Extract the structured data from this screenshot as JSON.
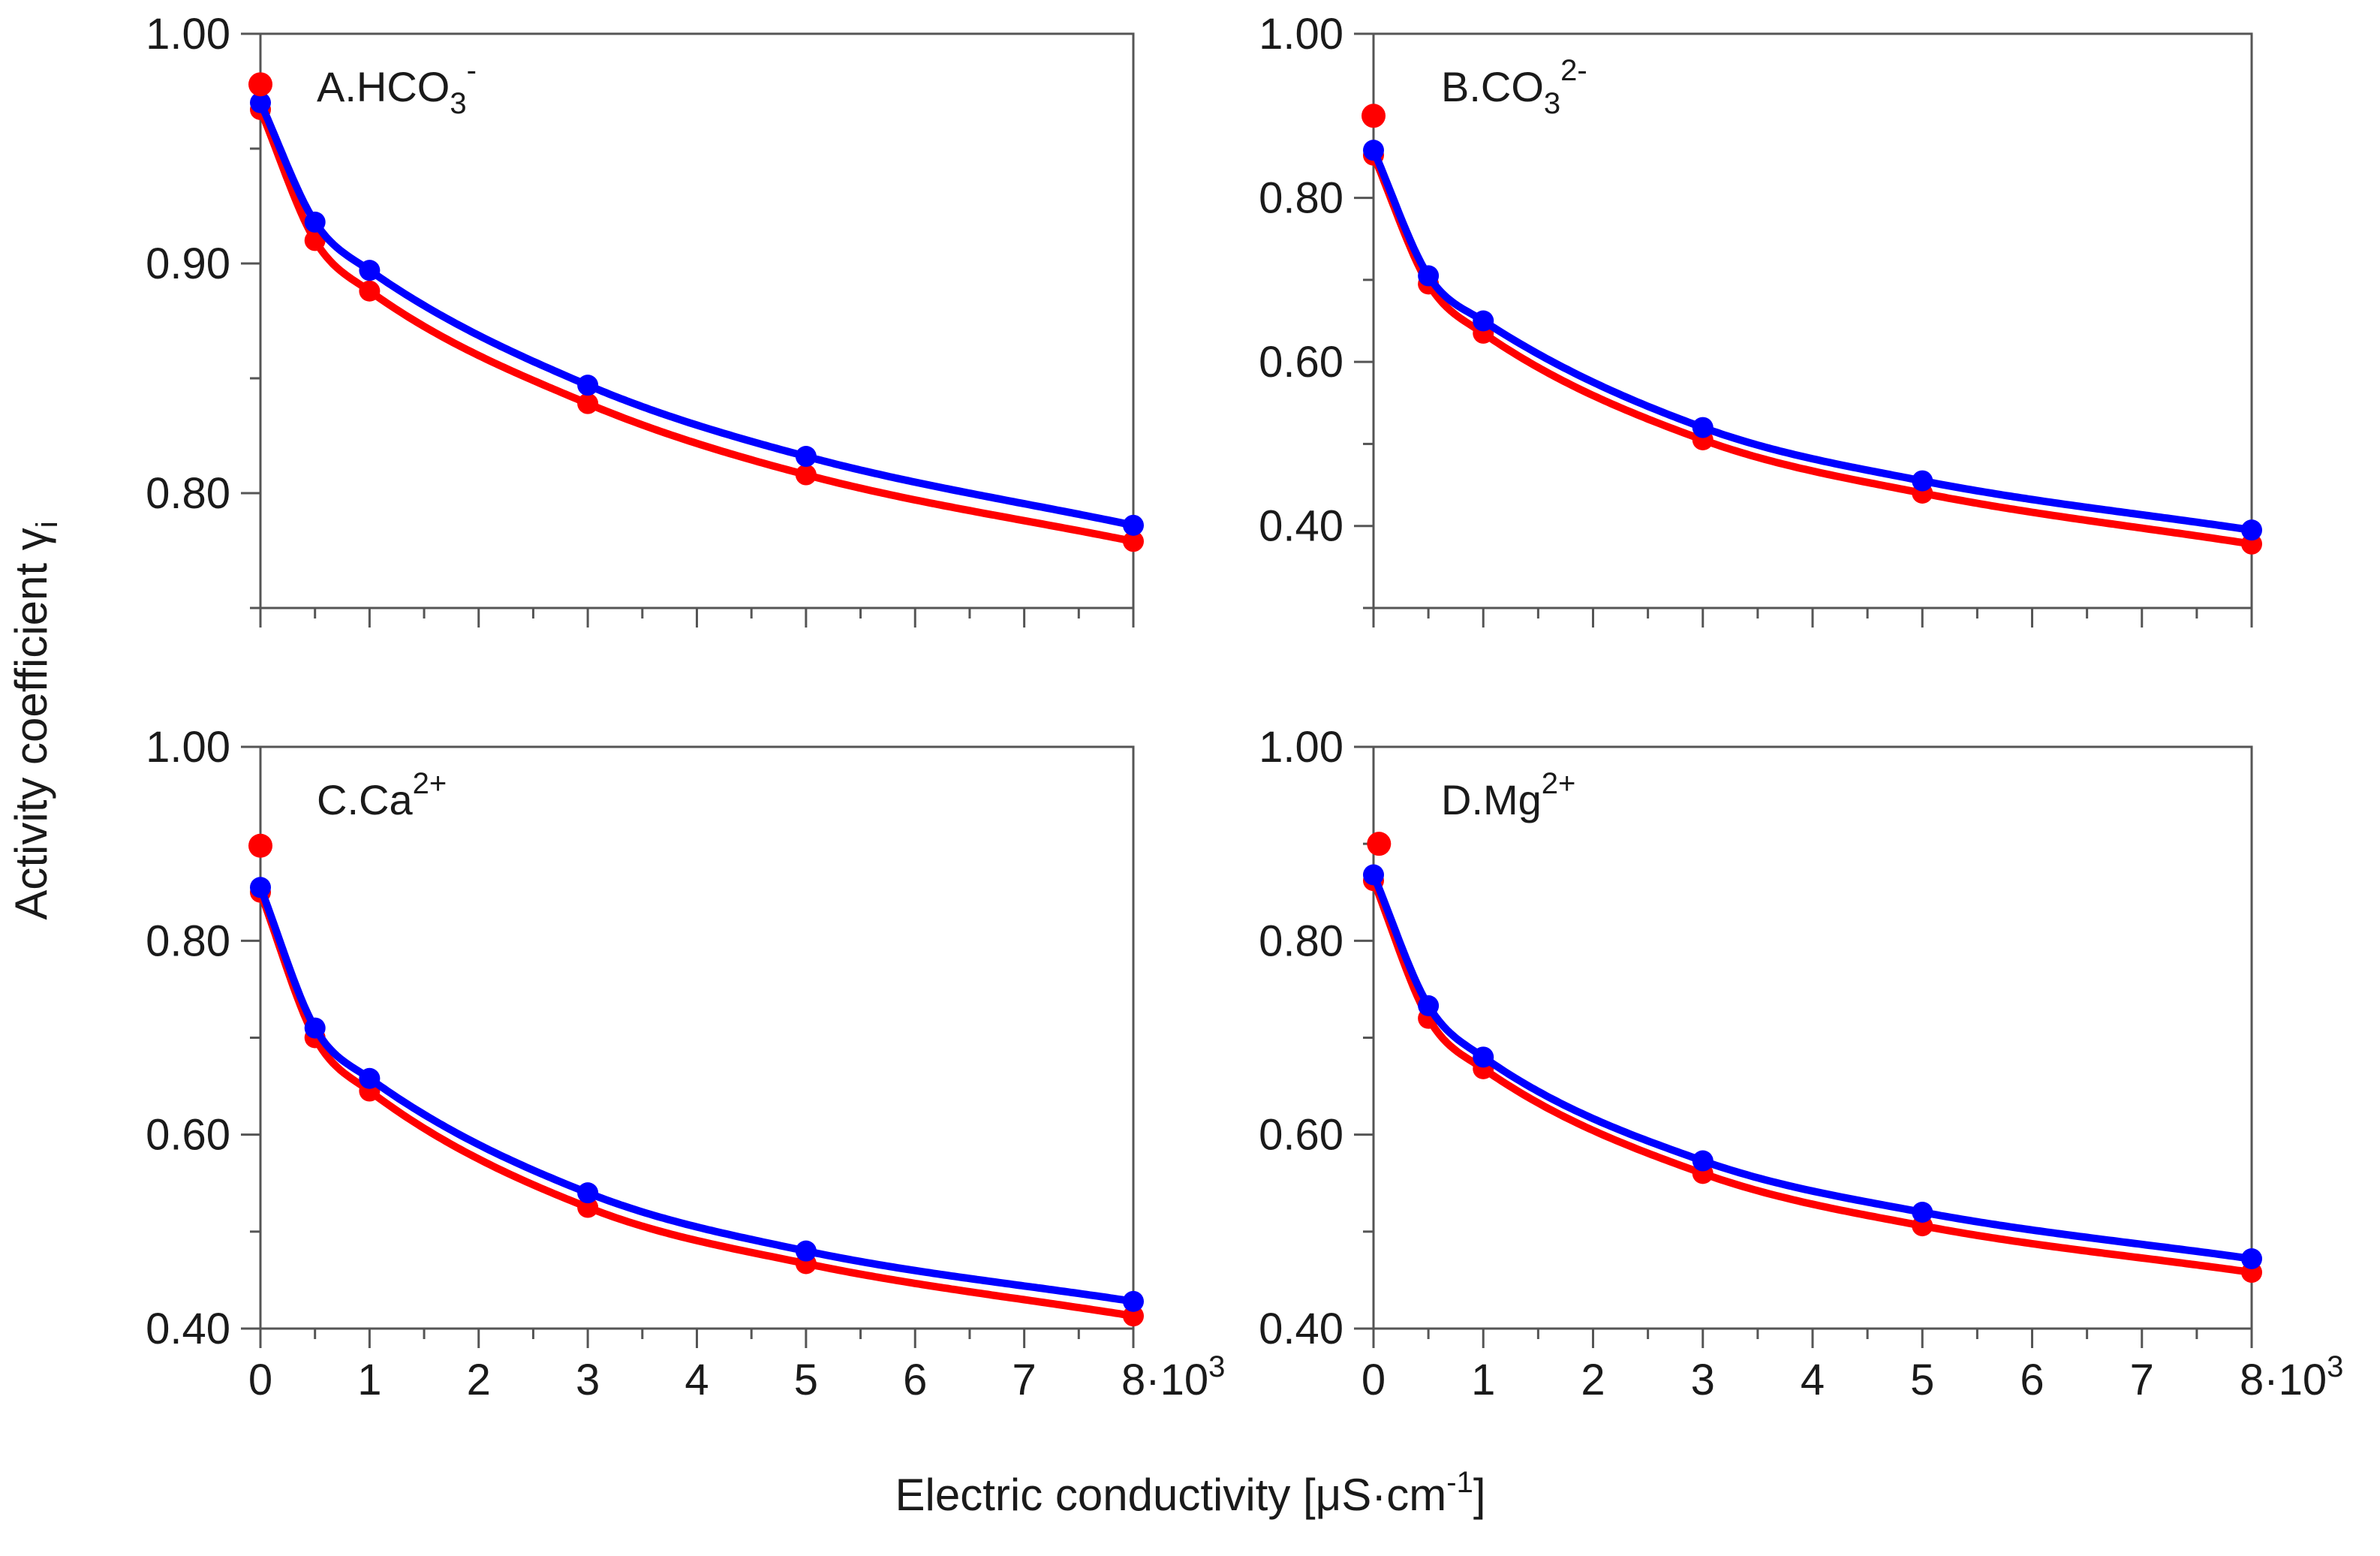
{
  "figure": {
    "ylabel_main": "Activity coefficient γ",
    "ylabel_sub": "i",
    "xlabel_main": "Electric conductivity [μS·cm",
    "xlabel_sup": "-1",
    "xlabel_end": "]",
    "x_exponent_suffix": "·10",
    "x_exponent_sup": "3",
    "series_colors": {
      "blue": "#0000ff",
      "red": "#ff0000"
    },
    "axis_color": "#555555"
  },
  "chart_data": [
    {
      "type": "line",
      "id": "A",
      "title_main": "A.HCO",
      "title_sub": "3",
      "title_sup": "-",
      "x": [
        0,
        0.5,
        1,
        3,
        5,
        8
      ],
      "xlim": [
        0,
        8
      ],
      "x_ticks": [
        "0",
        "1",
        "2",
        "3",
        "4",
        "5",
        "6",
        "7",
        "8"
      ],
      "ylim": [
        0.75,
        1.0
      ],
      "y_ticks": [
        1.0,
        0.9,
        0.8
      ],
      "y_tick_labels": [
        "1.00",
        "0.90",
        "0.80"
      ],
      "series": [
        {
          "name": "blue",
          "color": "#0000ff",
          "values": [
            0.97,
            0.918,
            0.897,
            0.847,
            0.816,
            0.786
          ]
        },
        {
          "name": "red",
          "color": "#ff0000",
          "values": [
            0.967,
            0.91,
            0.888,
            0.839,
            0.808,
            0.779
          ]
        }
      ],
      "extra_points": [
        {
          "series": "red",
          "x": 0,
          "y": 0.978
        }
      ]
    },
    {
      "type": "line",
      "id": "B",
      "title_main": "B.CO",
      "title_sub": "3",
      "title_sup": "2-",
      "x": [
        0,
        0.5,
        1,
        3,
        5,
        8
      ],
      "xlim": [
        0,
        8
      ],
      "x_ticks": [
        "0",
        "1",
        "2",
        "3",
        "4",
        "5",
        "6",
        "7",
        "8"
      ],
      "ylim": [
        0.3,
        1.0
      ],
      "y_ticks": [
        1.0,
        0.8,
        0.6,
        0.4
      ],
      "y_tick_labels": [
        "1.00",
        "0.80",
        "0.60",
        "0.40"
      ],
      "series": [
        {
          "name": "blue",
          "color": "#0000ff",
          "values": [
            0.858,
            0.705,
            0.65,
            0.52,
            0.455,
            0.395
          ]
        },
        {
          "name": "red",
          "color": "#ff0000",
          "values": [
            0.852,
            0.695,
            0.635,
            0.505,
            0.44,
            0.378
          ]
        }
      ],
      "extra_points": [
        {
          "series": "red",
          "x": 0,
          "y": 0.9
        }
      ]
    },
    {
      "type": "line",
      "id": "C",
      "title_main": "C.Ca",
      "title_sub": "",
      "title_sup": "2+",
      "x": [
        0,
        0.5,
        1,
        3,
        5,
        8
      ],
      "xlim": [
        0,
        8
      ],
      "x_ticks": [
        "0",
        "1",
        "2",
        "3",
        "4",
        "5",
        "6",
        "7",
        "8"
      ],
      "ylim": [
        0.4,
        1.0
      ],
      "y_ticks": [
        1.0,
        0.8,
        0.6,
        0.4
      ],
      "y_tick_labels": [
        "1.00",
        "0.80",
        "0.60",
        "0.40"
      ],
      "series": [
        {
          "name": "blue",
          "color": "#0000ff",
          "values": [
            0.855,
            0.71,
            0.658,
            0.54,
            0.48,
            0.428
          ]
        },
        {
          "name": "red",
          "color": "#ff0000",
          "values": [
            0.85,
            0.7,
            0.645,
            0.525,
            0.467,
            0.413
          ]
        }
      ],
      "extra_points": [
        {
          "series": "red",
          "x": 0,
          "y": 0.898
        }
      ]
    },
    {
      "type": "line",
      "id": "D",
      "title_main": "D.Mg",
      "title_sub": "",
      "title_sup": "2+",
      "x": [
        0,
        0.5,
        1,
        3,
        5,
        8
      ],
      "xlim": [
        0,
        8
      ],
      "x_ticks": [
        "0",
        "1",
        "2",
        "3",
        "4",
        "5",
        "6",
        "7",
        "8"
      ],
      "ylim": [
        0.4,
        1.0
      ],
      "y_ticks": [
        1.0,
        0.8,
        0.6,
        0.4
      ],
      "y_tick_labels": [
        "1.00",
        "0.80",
        "0.60",
        "0.40"
      ],
      "series": [
        {
          "name": "blue",
          "color": "#0000ff",
          "values": [
            0.868,
            0.733,
            0.68,
            0.573,
            0.52,
            0.472
          ]
        },
        {
          "name": "red",
          "color": "#ff0000",
          "values": [
            0.862,
            0.72,
            0.668,
            0.56,
            0.506,
            0.458
          ]
        }
      ],
      "extra_points": [
        {
          "series": "red",
          "x": 0.05,
          "y": 0.9
        }
      ]
    }
  ]
}
